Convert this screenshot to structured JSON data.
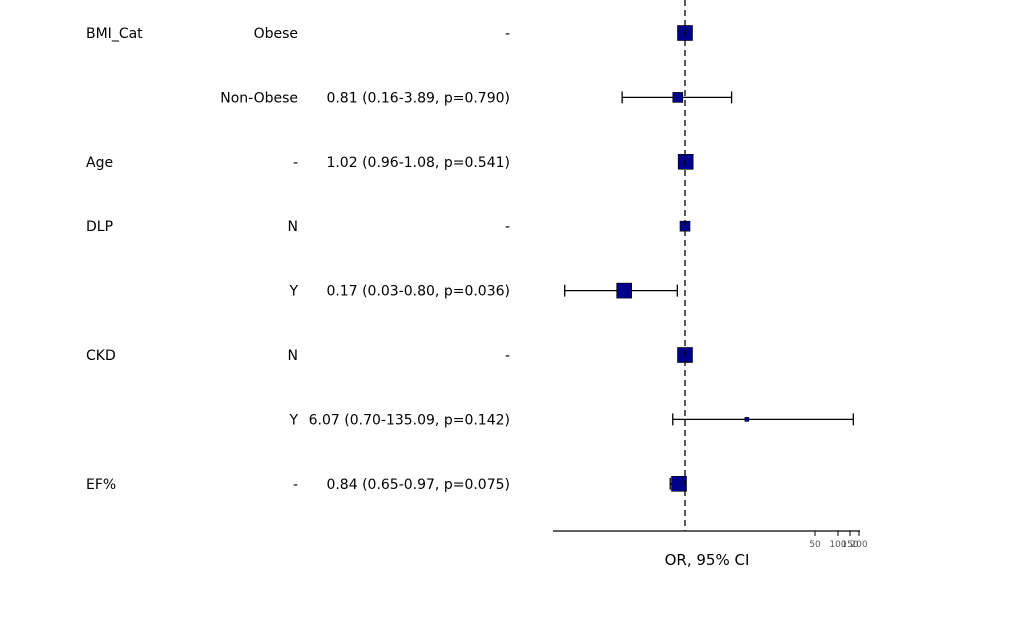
{
  "chart_data": {
    "type": "forest",
    "title": "",
    "xlabel": "OR, 95% CI",
    "x_scale": "log",
    "reference_line": 1,
    "x_tick_labels": [
      "50",
      "100",
      "150",
      "200"
    ],
    "rows": [
      {
        "variable": "BMI_Cat",
        "level": "Obese",
        "estimate_text": "-",
        "or": 1,
        "lo": null,
        "hi": null,
        "marker": "large"
      },
      {
        "variable": "",
        "level": "Non-Obese",
        "estimate_text": "0.81 (0.16-3.89, p=0.790)",
        "or": 0.81,
        "lo": 0.16,
        "hi": 3.89,
        "marker": "small"
      },
      {
        "variable": "Age",
        "level": "-",
        "estimate_text": "1.02 (0.96-1.08, p=0.541)",
        "or": 1.02,
        "lo": 0.96,
        "hi": 1.08,
        "marker": "large"
      },
      {
        "variable": "DLP",
        "level": "N",
        "estimate_text": "-",
        "or": 1,
        "lo": null,
        "hi": null,
        "marker": "small"
      },
      {
        "variable": "",
        "level": "Y",
        "estimate_text": "0.17 (0.03-0.80, p=0.036)",
        "or": 0.17,
        "lo": 0.03,
        "hi": 0.8,
        "marker": "large"
      },
      {
        "variable": "CKD",
        "level": "N",
        "estimate_text": "-",
        "or": 1,
        "lo": null,
        "hi": null,
        "marker": "large"
      },
      {
        "variable": "",
        "level": "Y",
        "estimate_text": "6.07 (0.70-135.09, p=0.142)",
        "or": 6.07,
        "lo": 0.7,
        "hi": 135.09,
        "marker": "tiny"
      },
      {
        "variable": "EF%",
        "level": "-",
        "estimate_text": "0.84 (0.65-0.97, p=0.075)",
        "or": 0.84,
        "lo": 0.65,
        "hi": 0.97,
        "marker": "large"
      }
    ]
  },
  "colors": {
    "marker_fill": "#00008b",
    "line": "#000000"
  }
}
